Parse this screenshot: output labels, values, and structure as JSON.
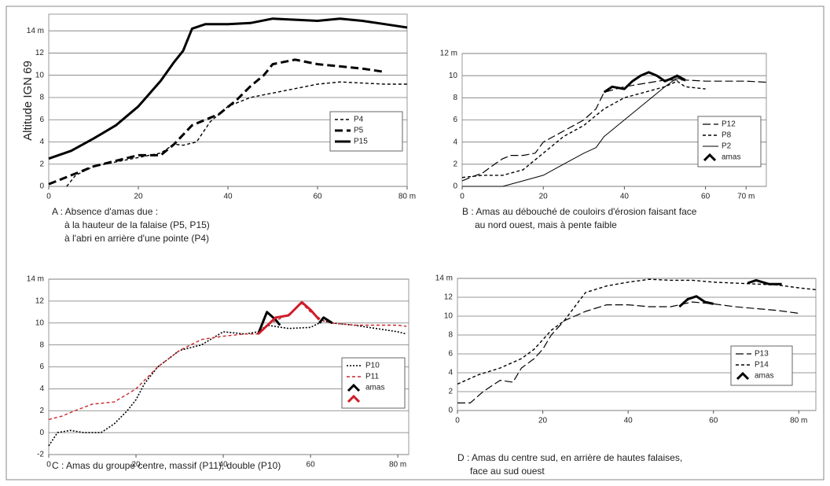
{
  "chart_data": [
    {
      "type": "line",
      "ylabel": "Altitude IGN 69",
      "caption": [
        "A : Absence d'amas due :",
        "à la hauteur de la falaise (P5, P15)",
        "à l'abri en arrière d'une pointe (P4)"
      ],
      "xlim": [
        0,
        80
      ],
      "xticks": [
        0,
        20,
        40,
        60,
        {
          "value": 80,
          "label": "80 m"
        }
      ],
      "ylim": [
        0,
        15.5
      ],
      "yticks": [
        0,
        2,
        4,
        6,
        8,
        10,
        12,
        {
          "value": 14,
          "label": "14 m"
        }
      ],
      "grid": true,
      "series": [
        {
          "name": "P4",
          "color": "#000000",
          "style": "dashed",
          "x": [
            4,
            6,
            10,
            15,
            20,
            25,
            28,
            30,
            33,
            36,
            40,
            45,
            50,
            55,
            60,
            65,
            70,
            75,
            80
          ],
          "values": [
            0,
            1,
            1.8,
            2.2,
            2.6,
            3,
            3.8,
            3.7,
            4,
            5.8,
            7.2,
            8,
            8.4,
            8.8,
            9.2,
            9.4,
            9.3,
            9.2,
            9.2
          ]
        },
        {
          "name": "P5",
          "color": "#000000",
          "style": "dashed-thick",
          "x": [
            0,
            5,
            10,
            15,
            20,
            25,
            28,
            32,
            35,
            38,
            42,
            45,
            48,
            50,
            55,
            60,
            65,
            70,
            75
          ],
          "values": [
            0.2,
            1,
            1.8,
            2.3,
            2.8,
            2.8,
            3.8,
            5.5,
            6,
            6.5,
            7.8,
            9,
            10,
            11,
            11.4,
            11,
            10.8,
            10.6,
            10.3
          ]
        },
        {
          "name": "P15",
          "color": "#000000",
          "style": "solid-thick",
          "x": [
            0,
            5,
            10,
            15,
            20,
            25,
            28,
            30,
            32,
            35,
            40,
            45,
            50,
            55,
            60,
            65,
            70,
            75,
            80
          ],
          "values": [
            2.5,
            3.2,
            4.3,
            5.5,
            7.2,
            9.5,
            11.2,
            12.2,
            14.2,
            14.6,
            14.6,
            14.7,
            15.1,
            15,
            14.9,
            15.1,
            14.9,
            14.6,
            14.3
          ]
        }
      ]
    },
    {
      "type": "line",
      "caption": [
        "B : Amas au débouché de couloirs d'érosion faisant face",
        "au nord ouest, mais à pente faible"
      ],
      "xlim": [
        0,
        75
      ],
      "xticks": [
        0,
        20,
        40,
        60,
        {
          "value": 70,
          "label": "70 m"
        }
      ],
      "ylim": [
        0,
        12
      ],
      "yticks": [
        0,
        2,
        4,
        6,
        8,
        10,
        {
          "value": 12,
          "label": "12 m"
        }
      ],
      "grid": true,
      "series": [
        {
          "name": "P12",
          "color": "#000000",
          "style": "longdash",
          "x": [
            0,
            2,
            5,
            8,
            10,
            12,
            15,
            18,
            20,
            25,
            30,
            33,
            35,
            40,
            45,
            50,
            55,
            60,
            65,
            70,
            75
          ],
          "values": [
            0.5,
            0.8,
            1.2,
            2,
            2.5,
            2.8,
            2.8,
            3,
            4,
            5,
            6,
            7,
            8.5,
            9,
            9.3,
            9.6,
            9.6,
            9.5,
            9.5,
            9.5,
            9.4
          ]
        },
        {
          "name": "P8",
          "color": "#000000",
          "style": "dashed",
          "x": [
            0,
            5,
            10,
            15,
            20,
            25,
            30,
            35,
            40,
            45,
            50,
            53,
            55,
            60
          ],
          "values": [
            0.8,
            1,
            1,
            1.5,
            3,
            4.5,
            5.5,
            7,
            8,
            8.5,
            9,
            9.5,
            9,
            8.8
          ]
        },
        {
          "name": "P2",
          "color": "#000000",
          "style": "solid",
          "x": [
            0,
            5,
            10,
            15,
            20,
            25,
            30,
            33,
            35,
            40,
            45,
            50,
            53,
            55
          ],
          "values": [
            0,
            0,
            0,
            0.5,
            1,
            2,
            3,
            3.5,
            4.5,
            6,
            7.5,
            9,
            9.8,
            9.5
          ]
        },
        {
          "name": "amas",
          "color": "#000000",
          "style": "amas",
          "x": [
            35,
            37,
            40,
            42,
            44,
            46,
            48,
            50,
            52,
            53,
            55
          ],
          "values": [
            8.5,
            9,
            8.8,
            9.5,
            10,
            10.3,
            10,
            9.5,
            9.8,
            10,
            9.6
          ]
        }
      ]
    },
    {
      "type": "line",
      "caption": [
        "C : Amas du groupe centre, massif (P11), double (P10)"
      ],
      "xlim": [
        0,
        82.5
      ],
      "xticks": [
        0,
        20,
        40,
        60,
        {
          "value": 80,
          "label": "80 m"
        }
      ],
      "ylim": [
        -2,
        14
      ],
      "yticks": [
        -2,
        0,
        2,
        4,
        6,
        8,
        10,
        12,
        {
          "value": 14,
          "label": "14 m"
        }
      ],
      "grid": true,
      "series": [
        {
          "name": "P10",
          "color": "#000000",
          "style": "dotted",
          "x": [
            0,
            2,
            5,
            8,
            12,
            15,
            18,
            20,
            22,
            25,
            30,
            35,
            40,
            45,
            48,
            50,
            55,
            60,
            63,
            65,
            70,
            75,
            80,
            82
          ],
          "values": [
            -1.2,
            0,
            0.2,
            0,
            0,
            0.8,
            2,
            3,
            4.5,
            6,
            7.5,
            8,
            9.2,
            9,
            9.2,
            9.8,
            9.5,
            9.6,
            10.2,
            10,
            9.8,
            9.5,
            9.2,
            9
          ]
        },
        {
          "name": "P11",
          "color": "#c8262b",
          "style": "dashed",
          "x": [
            0,
            3,
            6,
            10,
            15,
            18,
            20,
            25,
            30,
            35,
            40,
            45,
            48,
            50,
            55,
            58,
            60,
            63,
            65,
            70,
            75,
            80,
            82
          ],
          "values": [
            1.2,
            1.5,
            2,
            2.6,
            2.8,
            3.5,
            4,
            6,
            7.5,
            8.5,
            8.8,
            9,
            9,
            9.8,
            10.8,
            11.8,
            11,
            10.2,
            10,
            9.8,
            9.8,
            9.8,
            9.7
          ]
        },
        {
          "name": "amas",
          "color": "#000000",
          "style": "amas",
          "x": [
            48,
            50,
            52,
            53,
            null,
            62,
            63,
            65
          ],
          "values": [
            9,
            11,
            10.3,
            9.8,
            null,
            10,
            10.5,
            10
          ]
        },
        {
          "color": "#d01c2a",
          "style": "amas",
          "x": [
            48,
            52,
            55,
            58,
            60,
            62
          ],
          "values": [
            9,
            10.5,
            10.7,
            11.9,
            11.2,
            10.3
          ]
        }
      ]
    },
    {
      "type": "line",
      "caption": [
        "D : Amas du centre sud, en arrière de hautes falaises,",
        "face au sud ouest"
      ],
      "xlim": [
        0,
        84
      ],
      "xticks": [
        0,
        20,
        40,
        60,
        {
          "value": 80,
          "label": "80 m"
        }
      ],
      "ylim": [
        0,
        14
      ],
      "yticks": [
        0,
        2,
        4,
        6,
        8,
        10,
        12,
        {
          "value": 14,
          "label": "14 m"
        }
      ],
      "grid": true,
      "series": [
        {
          "name": "P13",
          "color": "#000000",
          "style": "longdash",
          "x": [
            0,
            3,
            6,
            10,
            13,
            15,
            18,
            20,
            22,
            25,
            30,
            35,
            40,
            45,
            50,
            55,
            60,
            65,
            70,
            75,
            80
          ],
          "values": [
            0.8,
            0.8,
            2,
            3.2,
            3,
            4.5,
            5.5,
            6.5,
            8,
            9.5,
            10.5,
            11.2,
            11.2,
            11,
            11,
            11.5,
            11.3,
            11,
            10.8,
            10.6,
            10.3
          ]
        },
        {
          "name": "P14",
          "color": "#000000",
          "style": "dashed",
          "x": [
            0,
            5,
            10,
            15,
            18,
            22,
            25,
            30,
            35,
            40,
            45,
            50,
            55,
            60,
            65,
            70,
            75,
            80,
            84
          ],
          "values": [
            2.8,
            3.8,
            4.5,
            5.5,
            6.5,
            8.5,
            9.5,
            12.5,
            13.2,
            13.6,
            13.9,
            13.8,
            13.8,
            13.6,
            13.5,
            13.4,
            13.3,
            13,
            12.8
          ]
        },
        {
          "name": "amas",
          "color": "#000000",
          "style": "amas",
          "x": [
            52,
            54,
            56,
            58,
            60,
            null,
            68,
            70,
            73,
            76
          ],
          "values": [
            11,
            11.8,
            12.1,
            11.5,
            11.3,
            null,
            13.5,
            13.8,
            13.4,
            13.4
          ]
        }
      ]
    }
  ]
}
